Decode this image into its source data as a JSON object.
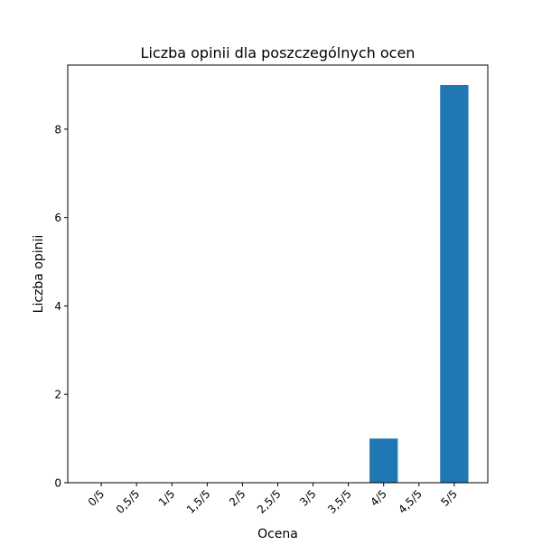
{
  "chart_data": {
    "type": "bar",
    "title": "Liczba opinii dla poszczególnych ocen",
    "xlabel": "Ocena",
    "ylabel": "Liczba opinii",
    "categories": [
      "0/5",
      "0,5/5",
      "1/5",
      "1,5/5",
      "2/5",
      "2,5/5",
      "3/5",
      "3,5/5",
      "4/5",
      "4,5/5",
      "5/5"
    ],
    "values": [
      0,
      0,
      0,
      0,
      0,
      0,
      0,
      0,
      1,
      0,
      9
    ],
    "ylim": [
      0,
      9.45
    ],
    "yticks": [
      0,
      2,
      4,
      6,
      8
    ],
    "bar_color": "#1f77b4",
    "grid": false,
    "legend": "none"
  }
}
